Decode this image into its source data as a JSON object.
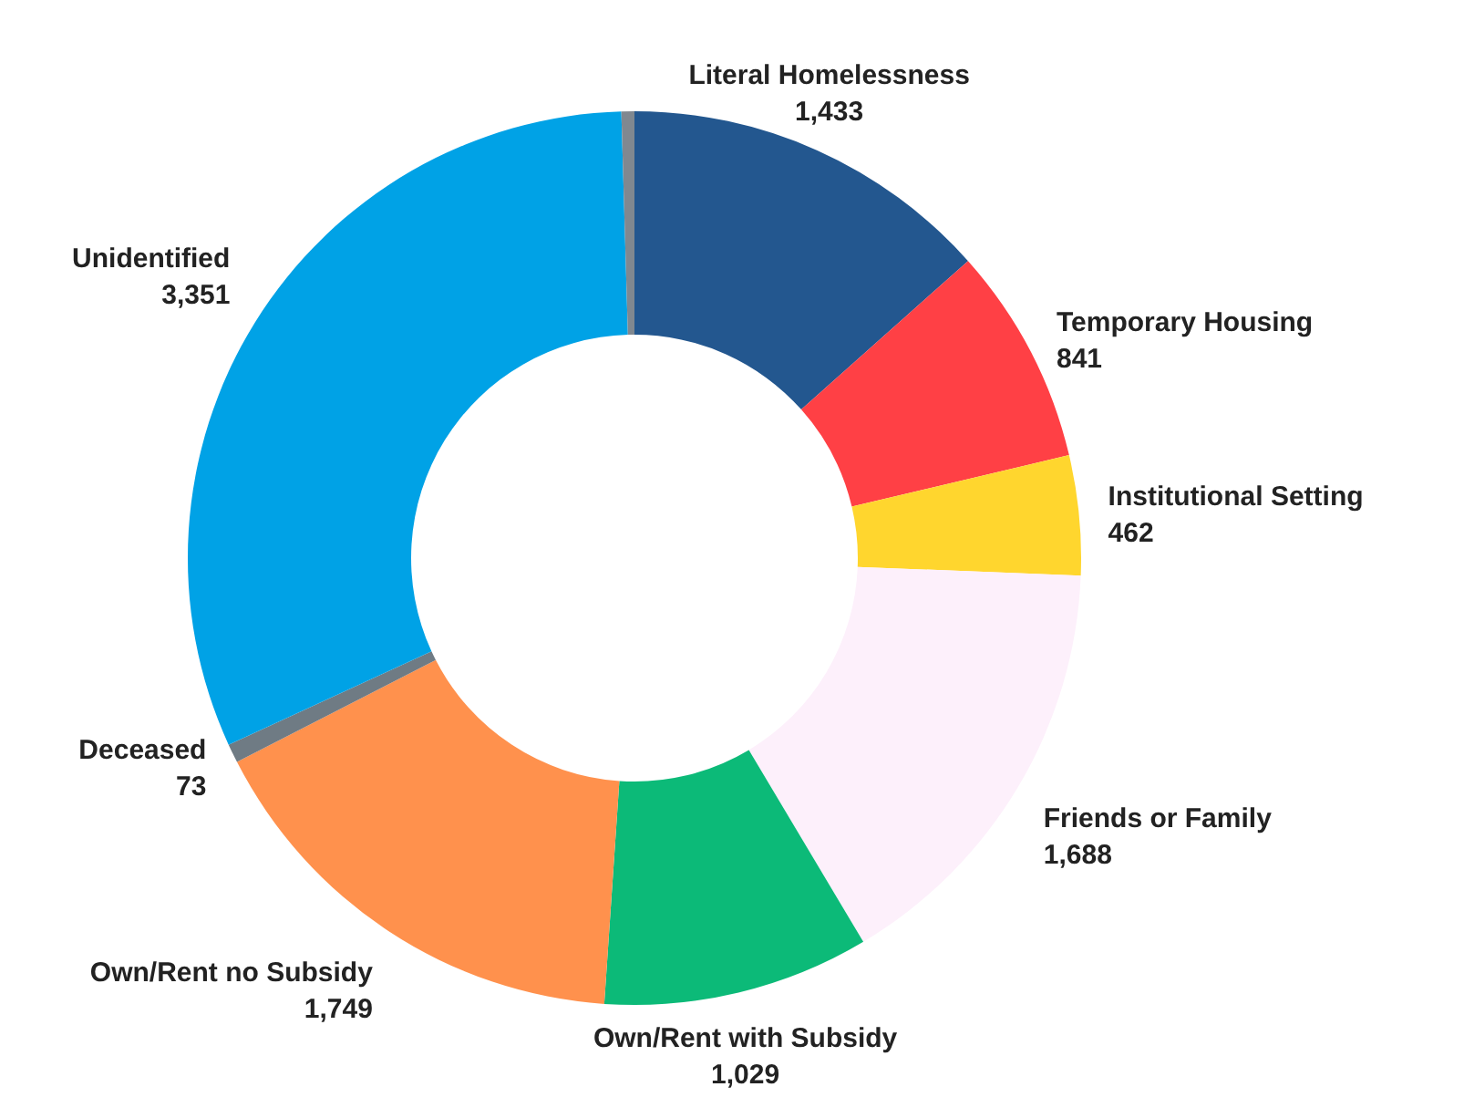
{
  "chart_data": {
    "type": "donut",
    "categories": [
      "Literal Homelessness",
      "Temporary Housing",
      "Institutional Setting",
      "Friends or Family",
      "Own/Rent with Subsidy",
      "Own/Rent no Subsidy",
      "Deceased",
      "Unidentified",
      null
    ],
    "values": [
      1433,
      841,
      462,
      1688,
      1029,
      1749,
      73,
      3351,
      50
    ],
    "value_labels": [
      "1,433",
      "841",
      "462",
      "1,688",
      "1,029",
      "1,749",
      "73",
      "3,351",
      null
    ],
    "colors": [
      "#23578f",
      "#ff4045",
      "#ffd62e",
      "#fdf0fb",
      "#0cba78",
      "#ff914d",
      "#6f7b84",
      "#00a2e6",
      "#808890"
    ]
  }
}
